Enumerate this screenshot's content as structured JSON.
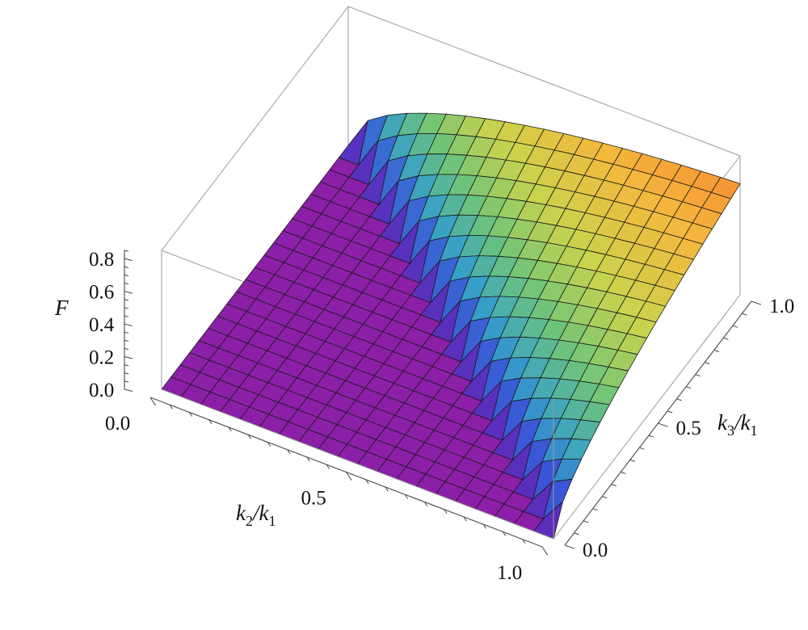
{
  "chart_data": {
    "type": "surface3d",
    "title": "",
    "z_axis": {
      "label": "F",
      "ticks": [
        "0.0",
        "0.2",
        "0.4",
        "0.6",
        "0.8"
      ],
      "range": [
        0,
        0.85
      ]
    },
    "x_axis": {
      "label_base": "k",
      "label_sub_num": "2",
      "label_sub_den": "1",
      "ticks": [
        "0.0",
        "0.5",
        "1.0"
      ],
      "range": [
        0,
        1
      ]
    },
    "y_axis": {
      "label_base": "k",
      "label_sub_num": "3",
      "label_sub_den": "1",
      "ticks": [
        "0.0",
        "0.5",
        "1.0"
      ],
      "range": [
        0,
        1
      ]
    },
    "surface": {
      "description_fn": "F = 0 for k2/k1 + k3/k1 < 1, rising to about 0.85 at k2/k1 = 0, k3/k1 = 1",
      "support": "x + y >= 1",
      "z_max": 0.85,
      "grid": 21
    },
    "colormap": [
      "#6b1fb0",
      "#3a4fd8",
      "#36a0c8",
      "#6dc47a",
      "#c9d34c",
      "#f5b73d",
      "#f77a2a",
      "#ee2c2a"
    ],
    "flat_color": "#8c1fa8"
  }
}
